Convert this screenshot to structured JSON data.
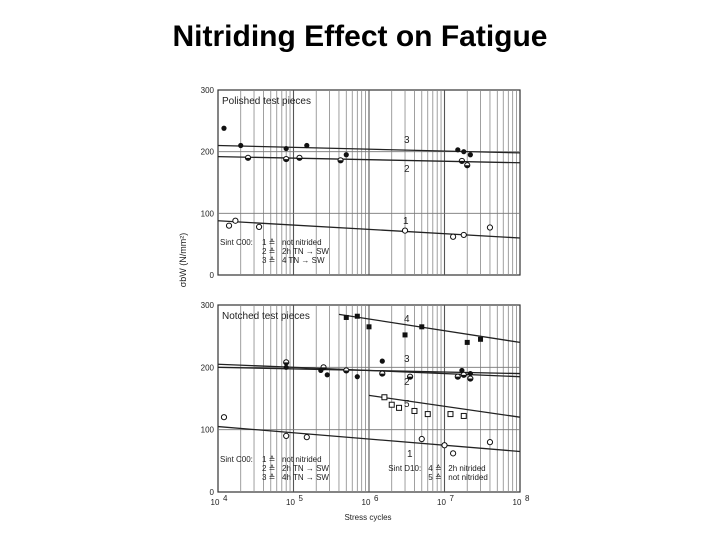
{
  "slide": {
    "title": "Nitriding Effect on Fatigue"
  },
  "chart_data": [
    {
      "type": "scatter",
      "panel_title": "Polished test pieces",
      "xlabel": "Stress cycles",
      "ylabel": "σbW (N/mm²)",
      "x_scale": "log",
      "xlim": [
        10000,
        100000000
      ],
      "ylim": [
        0,
        300
      ],
      "y_ticks": [
        "0",
        "100",
        "200",
        "300"
      ],
      "legend": [
        {
          "num": "1",
          "symbol": "≙",
          "text": "not nitrided"
        },
        {
          "num": "2",
          "symbol": "≙",
          "text": "2h  TN → SW"
        },
        {
          "num": "3",
          "symbol": "≙",
          "text": "4    TN → SW"
        }
      ],
      "legend_prefix": "Sint C00:",
      "series": [
        {
          "name": "1",
          "marker": "open-circle",
          "points": [
            [
              14000,
              80
            ],
            [
              17000,
              88
            ],
            [
              35000,
              78
            ],
            [
              3000000,
              72
            ],
            [
              13000000,
              62
            ],
            [
              18000000,
              65
            ],
            [
              40000000,
              77
            ]
          ],
          "fit": [
            [
              10000,
              88
            ],
            [
              100000000,
              60
            ]
          ]
        },
        {
          "name": "2",
          "marker": "half-circle",
          "points": [
            [
              25000,
              190
            ],
            [
              80000,
              188
            ],
            [
              120000,
              190
            ],
            [
              420000,
              186
            ],
            [
              17000000,
              185
            ],
            [
              20000000,
              178
            ]
          ],
          "fit": [
            [
              10000,
              192
            ],
            [
              100000000,
              182
            ]
          ]
        },
        {
          "name": "3",
          "marker": "filled-circle",
          "points": [
            [
              12000,
              238
            ],
            [
              20000,
              210
            ],
            [
              80000,
              205
            ],
            [
              150000,
              210
            ],
            [
              500000,
              195
            ],
            [
              15000000,
              203
            ],
            [
              18000000,
              200
            ],
            [
              22000000,
              195
            ]
          ],
          "fit": [
            [
              10000,
              210
            ],
            [
              100000000,
              198
            ]
          ]
        }
      ],
      "curve_labels": [
        "1",
        "2",
        "3"
      ]
    },
    {
      "type": "scatter",
      "panel_title": "Notched test pieces",
      "xlabel": "Stress cycles",
      "ylabel": "σbW (N/mm²)",
      "x_scale": "log",
      "xlim": [
        10000,
        100000000
      ],
      "ylim": [
        0,
        300
      ],
      "y_ticks": [
        "0",
        "100",
        "200",
        "300"
      ],
      "x_ticks": [
        "10",
        "10",
        "10",
        "10",
        "10"
      ],
      "x_tick_exponents": [
        "4",
        "5",
        "6",
        "7",
        "8"
      ],
      "legend": [
        {
          "num": "1",
          "symbol": "≙",
          "text": "not nitrided"
        },
        {
          "num": "2",
          "symbol": "≙",
          "text": "2h  TN → SW"
        },
        {
          "num": "3",
          "symbol": "≙",
          "text": "4h  TN → SW"
        }
      ],
      "legend_prefix": "Sint C00:",
      "legend2": [
        {
          "num": "4",
          "symbol": "≙",
          "text": "2h   nitrided"
        },
        {
          "num": "5",
          "symbol": "≙",
          "text": "not nitrided"
        }
      ],
      "legend2_prefix": "Sint D10:",
      "series": [
        {
          "name": "1",
          "marker": "open-circle",
          "points": [
            [
              12000,
              120
            ],
            [
              80000,
              90
            ],
            [
              150000,
              88
            ],
            [
              5000000,
              85
            ],
            [
              10000000,
              75
            ],
            [
              13000000,
              62
            ],
            [
              40000000,
              80
            ]
          ],
          "fit": [
            [
              10000,
              105
            ],
            [
              100000000,
              65
            ]
          ]
        },
        {
          "name": "2",
          "marker": "half-circle",
          "points": [
            [
              80000,
              208
            ],
            [
              250000,
              200
            ],
            [
              500000,
              195
            ],
            [
              1500000,
              190
            ],
            [
              3500000,
              185
            ],
            [
              15000000,
              185
            ],
            [
              18000000,
              188
            ],
            [
              22000000,
              182
            ]
          ],
          "fit": [
            [
              10000,
              205
            ],
            [
              100000000,
              185
            ]
          ]
        },
        {
          "name": "3",
          "marker": "filled-circle",
          "points": [
            [
              80000,
              200
            ],
            [
              230000,
              195
            ],
            [
              280000,
              188
            ],
            [
              700000,
              185
            ],
            [
              1500000,
              210
            ],
            [
              17000000,
              195
            ],
            [
              22000000,
              190
            ]
          ],
          "fit": [
            [
              10000,
              200
            ],
            [
              100000000,
              190
            ]
          ]
        },
        {
          "name": "4",
          "marker": "filled-square",
          "points": [
            [
              500000,
              280
            ],
            [
              700000,
              282
            ],
            [
              1000000,
              265
            ],
            [
              3000000,
              252
            ],
            [
              5000000,
              265
            ],
            [
              20000000,
              240
            ],
            [
              30000000,
              245
            ]
          ],
          "fit": [
            [
              400000,
              285
            ],
            [
              100000000,
              240
            ]
          ]
        },
        {
          "name": "5",
          "marker": "open-square",
          "points": [
            [
              1600000,
              152
            ],
            [
              2000000,
              140
            ],
            [
              2500000,
              135
            ],
            [
              4000000,
              130
            ],
            [
              6000000,
              125
            ],
            [
              12000000,
              125
            ],
            [
              18000000,
              122
            ]
          ],
          "fit": [
            [
              1000000,
              155
            ],
            [
              100000000,
              120
            ]
          ]
        }
      ],
      "curve_labels": [
        "1",
        "2",
        "3",
        "4",
        "5"
      ]
    }
  ]
}
